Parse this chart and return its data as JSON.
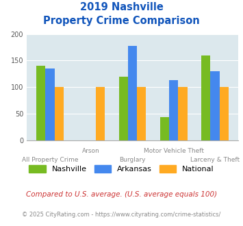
{
  "title_line1": "2019 Nashville",
  "title_line2": "Property Crime Comparison",
  "categories": [
    "All Property Crime",
    "Arson",
    "Burglary",
    "Motor Vehicle Theft",
    "Larceny & Theft"
  ],
  "nashville": [
    140,
    0,
    120,
    43,
    160
  ],
  "arkansas": [
    135,
    0,
    178,
    113,
    130
  ],
  "national": [
    100,
    100,
    100,
    100,
    100
  ],
  "color_nashville": "#77bb22",
  "color_arkansas": "#4488ee",
  "color_national": "#ffaa22",
  "ylim": [
    0,
    200
  ],
  "yticks": [
    0,
    50,
    100,
    150,
    200
  ],
  "bg_color": "#dce8ed",
  "legend_labels": [
    "Nashville",
    "Arkansas",
    "National"
  ],
  "footnote1": "Compared to U.S. average. (U.S. average equals 100)",
  "footnote2": "© 2025 CityRating.com - https://www.cityrating.com/crime-statistics/",
  "title_color": "#1155bb",
  "footnote1_color": "#cc3333",
  "footnote2_color": "#888888",
  "label_color": "#888888",
  "bar_width": 0.22
}
